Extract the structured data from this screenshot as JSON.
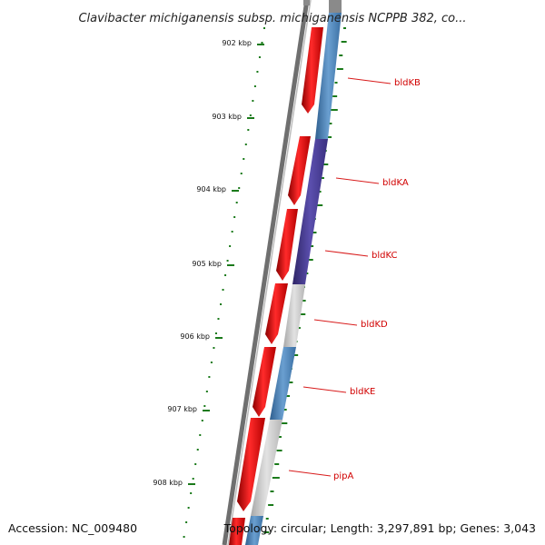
{
  "title": "Clavibacter michiganensis subsp. michiganensis NCPPB 382, co...",
  "footer": {
    "accession": "Accession: NC_009480",
    "summary": "Topology: circular; Length: 3,297,891 bp; Genes: 3,043"
  },
  "scale": {
    "unit": "kbp",
    "ticks": [
      {
        "label": "902 kbp",
        "kbp": 902
      },
      {
        "label": "903 kbp",
        "kbp": 903
      },
      {
        "label": "904 kbp",
        "kbp": 904
      },
      {
        "label": "905 kbp",
        "kbp": 905
      },
      {
        "label": "906 kbp",
        "kbp": 906
      },
      {
        "label": "907 kbp",
        "kbp": 907
      },
      {
        "label": "908 kbp",
        "kbp": 908
      }
    ]
  },
  "genes": [
    {
      "name": "bldKB",
      "color": "#d81b1b"
    },
    {
      "name": "bldKA",
      "color": "#d81b1b"
    },
    {
      "name": "bldKC",
      "color": "#d81b1b"
    },
    {
      "name": "bldKD",
      "color": "#d81b1b"
    },
    {
      "name": "bldKE",
      "color": "#d81b1b"
    },
    {
      "name": "pipA",
      "color": "#d81b1b"
    }
  ],
  "colors": {
    "backbone": "#777777",
    "cds": "#e31a1c",
    "cog_blue": "#4682b4",
    "cog_purple": "#4b3f8f",
    "cog_grey": "#bfbfbf",
    "gc_ticks": "#1a7a1a",
    "labels": "#d10000"
  }
}
